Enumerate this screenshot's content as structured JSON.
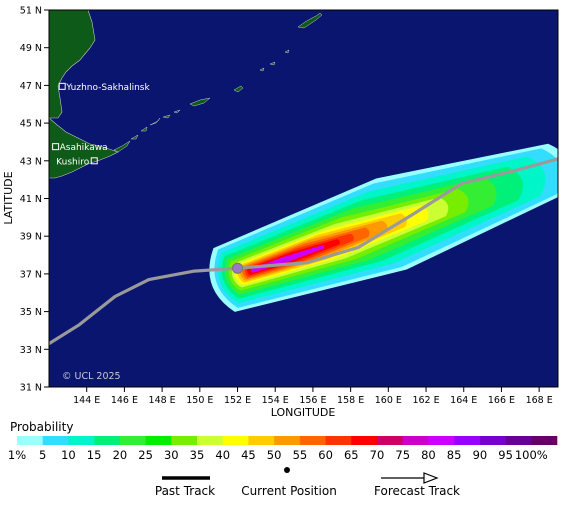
{
  "map": {
    "ocean_color": "#0a1570",
    "land_color": "#0e5a18",
    "track_color": "#9a9a9a",
    "lon_range": [
      142,
      169
    ],
    "lat_range": [
      31,
      51
    ],
    "x_axis_label": "LONGITUDE",
    "y_axis_label": "LATITUDE",
    "lon_ticks": [
      {
        "value": 144,
        "label": "144 E"
      },
      {
        "value": 146,
        "label": "146 E"
      },
      {
        "value": 148,
        "label": "148 E"
      },
      {
        "value": 150,
        "label": "150 E"
      },
      {
        "value": 152,
        "label": "152 E"
      },
      {
        "value": 154,
        "label": "154 E"
      },
      {
        "value": 156,
        "label": "156 E"
      },
      {
        "value": 158,
        "label": "158 E"
      },
      {
        "value": 160,
        "label": "160 E"
      },
      {
        "value": 162,
        "label": "162 E"
      },
      {
        "value": 164,
        "label": "164 E"
      },
      {
        "value": 166,
        "label": "166 E"
      },
      {
        "value": 168,
        "label": "168 E"
      }
    ],
    "lat_ticks": [
      {
        "value": 31,
        "label": "31 N"
      },
      {
        "value": 33,
        "label": "33 N"
      },
      {
        "value": 35,
        "label": "35 N"
      },
      {
        "value": 37,
        "label": "37 N"
      },
      {
        "value": 39,
        "label": "39 N"
      },
      {
        "value": 41,
        "label": "41 N"
      },
      {
        "value": 43,
        "label": "43 N"
      },
      {
        "value": 45,
        "label": "45 N"
      },
      {
        "value": 47,
        "label": "47 N"
      },
      {
        "value": 49,
        "label": "49 N"
      },
      {
        "value": 51,
        "label": "51 N"
      }
    ],
    "cities": [
      {
        "name": "Yuzhno-Sakhalinsk",
        "lon": 142.7,
        "lat": 46.95
      },
      {
        "name": "Asahikawa",
        "lon": 142.35,
        "lat": 43.75
      },
      {
        "name": "Kushiro",
        "lon": 144.4,
        "lat": 43.0
      }
    ],
    "track": [
      {
        "lon": 142.0,
        "lat": 33.3
      },
      {
        "lon": 143.6,
        "lat": 34.3
      },
      {
        "lon": 145.5,
        "lat": 35.8
      },
      {
        "lon": 147.3,
        "lat": 36.7
      },
      {
        "lon": 149.7,
        "lat": 37.15
      },
      {
        "lon": 152.0,
        "lat": 37.3
      },
      {
        "lon": 155.7,
        "lat": 37.6
      },
      {
        "lon": 158.4,
        "lat": 38.4
      },
      {
        "lon": 161.2,
        "lat": 40.1
      },
      {
        "lon": 163.9,
        "lat": 41.8
      },
      {
        "lon": 166.8,
        "lat": 42.5
      },
      {
        "lon": 169.0,
        "lat": 43.1
      }
    ],
    "current_position": {
      "lon": 152.0,
      "lat": 37.3
    },
    "credit": "© UCL 2025"
  },
  "probability": {
    "title": "Probability",
    "labels": [
      "1%",
      "5",
      "10",
      "15",
      "20",
      "25",
      "30",
      "35",
      "40",
      "45",
      "50",
      "55",
      "60",
      "65",
      "70",
      "75",
      "80",
      "85",
      "90",
      "95",
      "100%"
    ],
    "colors": [
      "#99ffff",
      "#33ddff",
      "#00f5c8",
      "#00f07a",
      "#33ee33",
      "#00ee00",
      "#77ee00",
      "#ccff33",
      "#ffff00",
      "#ffcc00",
      "#ff9900",
      "#ff6600",
      "#ff3300",
      "#ff0000",
      "#cc0066",
      "#cc00cc",
      "#cc00ff",
      "#9900ff",
      "#7700cc",
      "#660099",
      "#660066"
    ]
  },
  "legend": {
    "past_track": "Past Track",
    "current_position": "Current Position",
    "forecast_track": "Forecast Track"
  }
}
